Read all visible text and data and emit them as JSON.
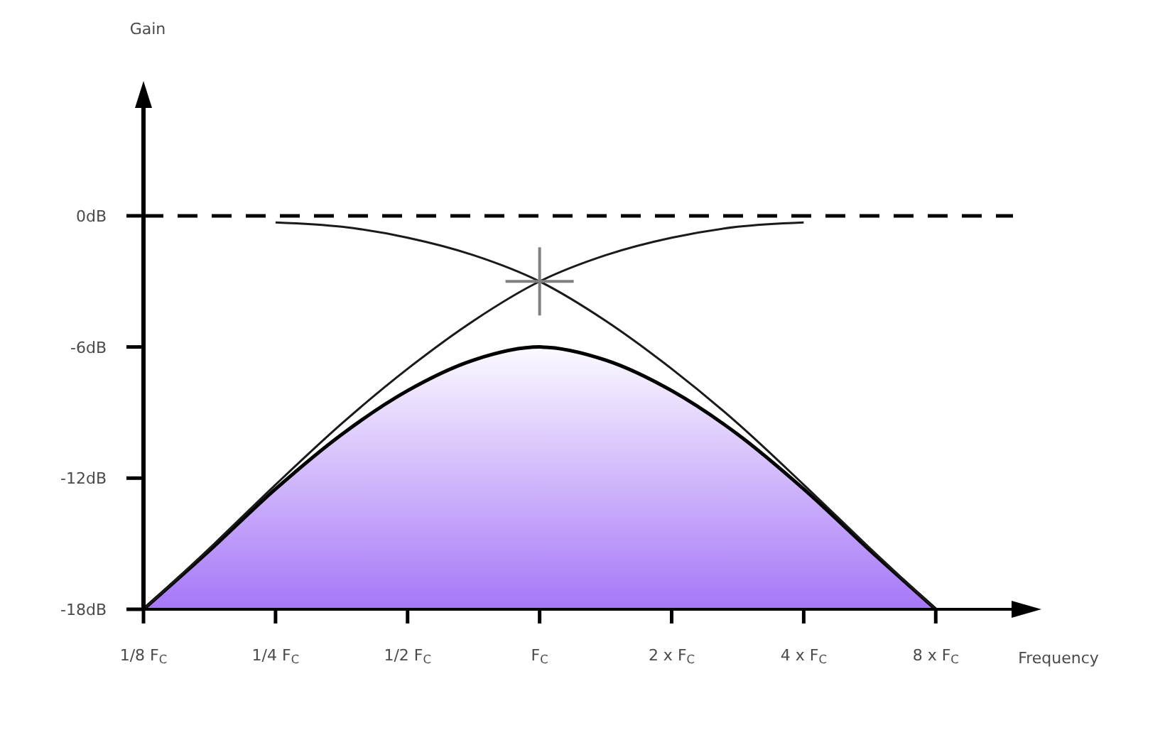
{
  "chart_data": {
    "type": "line",
    "xlabel": "Frequency",
    "ylabel": "Gain",
    "log": "x",
    "marker": "none",
    "xlim": [
      0.125,
      12
    ],
    "xticks": [
      {
        "value": 0.125,
        "label": "1/8 F$_{C}$"
      },
      {
        "value": 0.25,
        "label": "1/4 F$_{C}$"
      },
      {
        "value": 0.5,
        "label": "1/2 F$_{C}$"
      },
      {
        "value": 1,
        "label": "F$_{C}$"
      },
      {
        "value": 2,
        "label": "2 x F$_{C}$"
      },
      {
        "value": 4,
        "label": "4 x F$_{C}$"
      },
      {
        "value": 8,
        "label": "8 x F$_{C}$"
      }
    ],
    "ylim": [
      -18,
      5
    ],
    "yticks": [
      {
        "value": -18,
        "label": "-18dB"
      },
      {
        "value": -12,
        "label": "-12dB"
      },
      {
        "value": -6,
        "label": "-6dB"
      },
      {
        "value": 0,
        "label": "0dB"
      }
    ],
    "series": [
      {
        "type": "area",
        "color": "#6a1cf2",
        "x": [
          0.125,
          0.177,
          0.25,
          0.354,
          0.5,
          0.707,
          1,
          1.414,
          2,
          2.83,
          4,
          5.66,
          8
        ],
        "values": [
          -18,
          -15.3,
          -12.5,
          -10,
          -8,
          -6.6,
          -6,
          -6.6,
          -8,
          -10,
          -12.5,
          -15.3,
          -18
        ]
      },
      {
        "color": "#1a1a1a",
        "x": [
          0.25,
          0.354,
          0.5,
          0.707,
          1,
          1.414,
          2,
          2.83,
          4,
          5.66,
          8
        ],
        "values": [
          -0.3,
          -0.5,
          -1,
          -1.8,
          -3,
          -4.8,
          -7,
          -9.5,
          -12.3,
          -15.2,
          -18
        ]
      },
      {
        "color": "#1a1a1a",
        "x": [
          0.125,
          0.177,
          0.25,
          0.354,
          0.5,
          0.707,
          1,
          1.414,
          2,
          2.83,
          4
        ],
        "values": [
          -18,
          -15.2,
          -12.3,
          -9.5,
          -7,
          -4.8,
          -3,
          -1.8,
          -1,
          -0.5,
          -0.3
        ]
      },
      {
        "type": "scatter",
        "color": "#808080",
        "marker": "cross",
        "x": [
          1
        ],
        "values": [
          -3
        ]
      }
    ],
    "ref_lines": [
      {
        "axis": "y",
        "value": 0,
        "color": "#000000",
        "line_style": "dashed"
      }
    ]
  }
}
